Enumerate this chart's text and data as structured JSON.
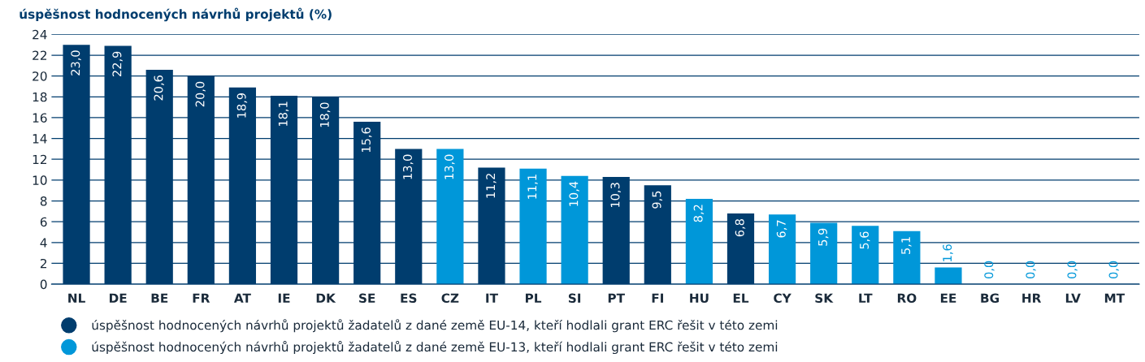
{
  "chart_data": {
    "type": "bar",
    "title": "úspěšnost hodnocených návrhů projektů (%)",
    "categories": [
      "NL",
      "DE",
      "BE",
      "FR",
      "AT",
      "IE",
      "DK",
      "SE",
      "ES",
      "CZ",
      "IT",
      "PL",
      "SI",
      "PT",
      "FI",
      "HU",
      "EL",
      "CY",
      "SK",
      "LT",
      "RO",
      "EE",
      "BG",
      "HR",
      "LV",
      "MT"
    ],
    "series": [
      {
        "name": "úspěšnost hodnocených návrhů projektů žadatelů z dané země EU-14, kteří hodlali grant ERC řešit v této zemi",
        "color": "#003d6e",
        "values": [
          23.0,
          22.9,
          20.6,
          20.0,
          18.9,
          18.1,
          18.0,
          15.6,
          13.0,
          null,
          11.2,
          null,
          null,
          10.3,
          9.5,
          null,
          6.8,
          null,
          null,
          null,
          null,
          null,
          null,
          null,
          null,
          null
        ],
        "value_labels": [
          "23,0",
          "22,9",
          "20,6",
          "20,0",
          "18,9",
          "18,1",
          "18,0",
          "15,6",
          "13,0",
          null,
          "11,2",
          null,
          null,
          "10,3",
          "9,5",
          null,
          "6,8",
          null,
          null,
          null,
          null,
          null,
          null,
          null,
          null,
          null
        ]
      },
      {
        "name": "úspěšnost hodnocených návrhů projektů žadatelů z dané země EU-13, kteří hodlali grant ERC řešit v této zemi",
        "color": "#0097d9",
        "values": [
          null,
          null,
          null,
          null,
          null,
          null,
          null,
          null,
          null,
          13.0,
          null,
          11.1,
          10.4,
          null,
          null,
          8.2,
          null,
          6.7,
          5.9,
          5.6,
          5.1,
          1.6,
          0.0,
          0.0,
          0.0,
          0.0
        ],
        "value_labels": [
          null,
          null,
          null,
          null,
          null,
          null,
          null,
          null,
          null,
          "13,0",
          null,
          "11,1",
          "10,4",
          null,
          null,
          "8,2",
          null,
          "6,7",
          "5,9",
          "5,6",
          "5,1",
          "1,6",
          "0,0",
          "0,0",
          "0,0",
          "0,0"
        ]
      }
    ],
    "ylim": [
      0,
      24
    ],
    "yticks": [
      0,
      2,
      4,
      6,
      8,
      10,
      12,
      14,
      16,
      18,
      20,
      22,
      24
    ],
    "grid": "y",
    "legend": "bottom"
  }
}
